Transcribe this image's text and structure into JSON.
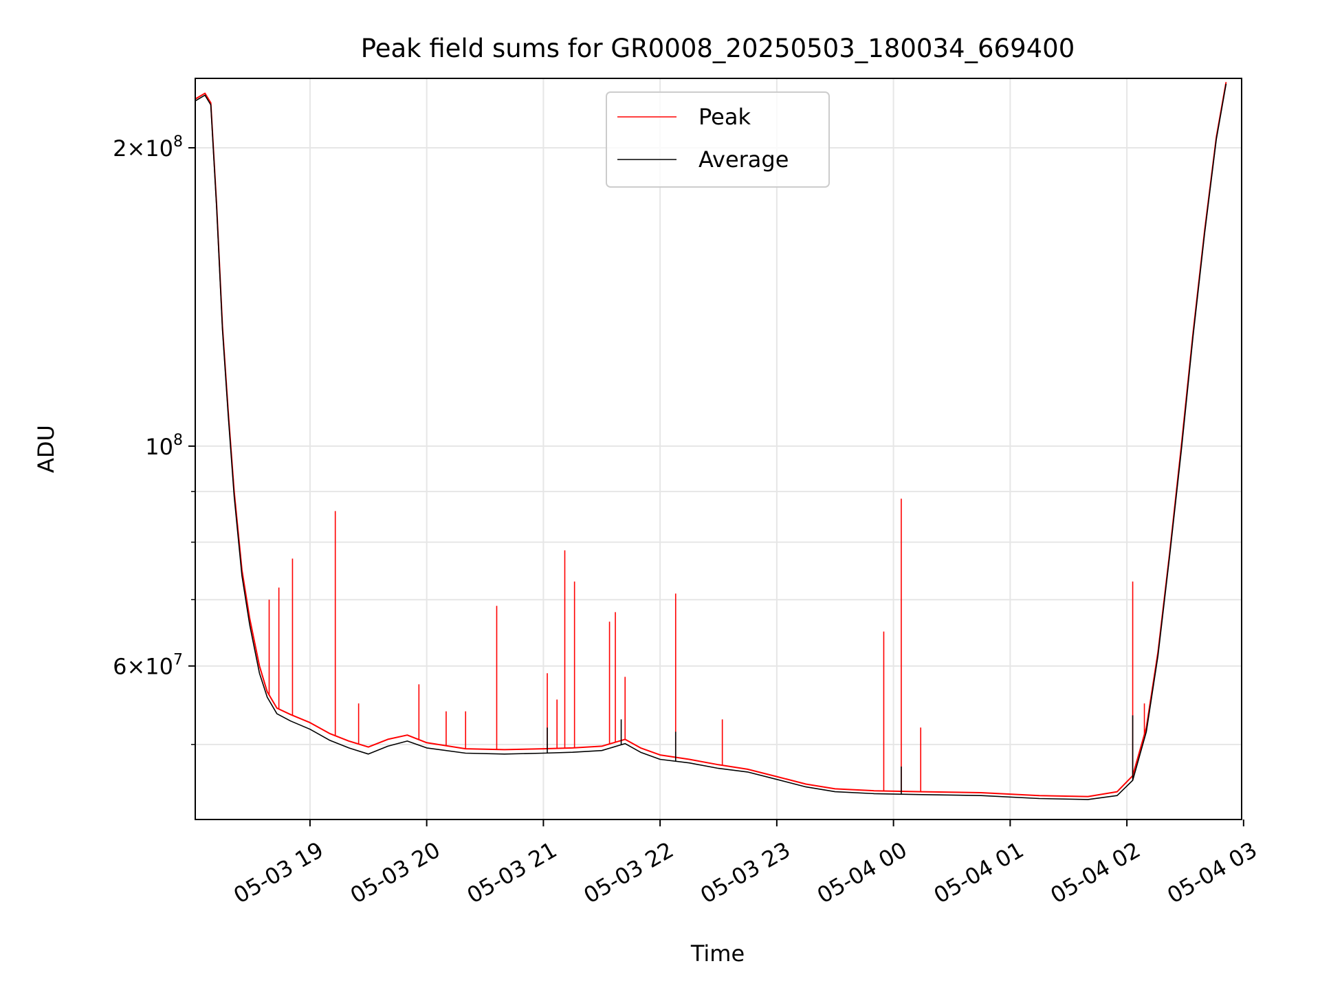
{
  "chart_data": {
    "type": "line",
    "title": "Peak field sums for GR0008_20250503_180034_669400",
    "xlabel": "Time",
    "ylabel": "ADU",
    "y_scale": "log",
    "ylim": [
      42000000,
      235000000
    ],
    "xlim": [
      "2025-05-03 18:01",
      "2025-05-04 02:59"
    ],
    "grid": true,
    "legend_position": "upper center",
    "x_ticks": [
      {
        "label": "05-03 19",
        "t": "2025-05-03 19:00"
      },
      {
        "label": "05-03 20",
        "t": "2025-05-03 20:00"
      },
      {
        "label": "05-03 21",
        "t": "2025-05-03 21:00"
      },
      {
        "label": "05-03 22",
        "t": "2025-05-03 22:00"
      },
      {
        "label": "05-03 23",
        "t": "2025-05-03 23:00"
      },
      {
        "label": "05-04 00",
        "t": "2025-05-04 00:00"
      },
      {
        "label": "05-04 01",
        "t": "2025-05-04 01:00"
      },
      {
        "label": "05-04 02",
        "t": "2025-05-04 02:00"
      },
      {
        "label": "05-04 03",
        "t": "2025-05-04 03:00"
      }
    ],
    "y_ticks": [
      {
        "value": 200000000,
        "mantissa": "2",
        "exponent": "8"
      },
      {
        "value": 100000000,
        "mantissa": "",
        "exponent": "8"
      },
      {
        "value": 60000000,
        "mantissa": "6",
        "exponent": "7"
      }
    ],
    "y_minor_ticks": [
      50000000,
      70000000,
      80000000,
      90000000
    ],
    "series": [
      {
        "name": "Peak",
        "color": "#ff0000",
        "points": [
          [
            "2025-05-03 18:01",
            224000000
          ],
          [
            "2025-05-03 18:06",
            227000000
          ],
          [
            "2025-05-03 18:09",
            222000000
          ],
          [
            "2025-05-03 18:12",
            175000000
          ],
          [
            "2025-05-03 18:15",
            132000000
          ],
          [
            "2025-05-03 18:18",
            108000000
          ],
          [
            "2025-05-03 18:21",
            90000000
          ],
          [
            "2025-05-03 18:25",
            75000000
          ],
          [
            "2025-05-03 18:29",
            67000000
          ],
          [
            "2025-05-03 18:34",
            60000000
          ],
          [
            "2025-05-03 18:38",
            56500000
          ],
          [
            "2025-05-03 18:43",
            54400000
          ],
          [
            "2025-05-03 18:50",
            53600000
          ],
          [
            "2025-05-03 19:00",
            52600000
          ],
          [
            "2025-05-03 19:10",
            51300000
          ],
          [
            "2025-05-03 19:20",
            50400000
          ],
          [
            "2025-05-03 19:30",
            49700000
          ],
          [
            "2025-05-03 19:40",
            50600000
          ],
          [
            "2025-05-03 19:50",
            51100000
          ],
          [
            "2025-05-03 20:00",
            50200000
          ],
          [
            "2025-05-03 20:20",
            49500000
          ],
          [
            "2025-05-03 20:40",
            49400000
          ],
          [
            "2025-05-03 21:00",
            49500000
          ],
          [
            "2025-05-03 21:15",
            49600000
          ],
          [
            "2025-05-03 21:30",
            49800000
          ],
          [
            "2025-05-03 21:42",
            50600000
          ],
          [
            "2025-05-03 21:50",
            49600000
          ],
          [
            "2025-05-03 22:00",
            48800000
          ],
          [
            "2025-05-03 22:15",
            48300000
          ],
          [
            "2025-05-03 22:30",
            47700000
          ],
          [
            "2025-05-03 22:45",
            47200000
          ],
          [
            "2025-05-03 23:00",
            46400000
          ],
          [
            "2025-05-03 23:15",
            45600000
          ],
          [
            "2025-05-03 23:30",
            45100000
          ],
          [
            "2025-05-03 23:50",
            44900000
          ],
          [
            "2025-05-04 00:15",
            44800000
          ],
          [
            "2025-05-04 00:45",
            44700000
          ],
          [
            "2025-05-04 01:15",
            44400000
          ],
          [
            "2025-05-04 01:40",
            44300000
          ],
          [
            "2025-05-04 01:55",
            44800000
          ],
          [
            "2025-05-04 02:03",
            46500000
          ],
          [
            "2025-05-04 02:10",
            52000000
          ],
          [
            "2025-05-04 02:16",
            62000000
          ],
          [
            "2025-05-04 02:22",
            78000000
          ],
          [
            "2025-05-04 02:28",
            100000000
          ],
          [
            "2025-05-04 02:34",
            130000000
          ],
          [
            "2025-05-04 02:40",
            165000000
          ],
          [
            "2025-05-04 02:46",
            205000000
          ],
          [
            "2025-05-04 02:51",
            233000000
          ]
        ]
      },
      {
        "name": "Average",
        "color": "#000000",
        "points": [
          [
            "2025-05-03 18:01",
            223000000
          ],
          [
            "2025-05-03 18:06",
            226000000
          ],
          [
            "2025-05-03 18:09",
            221000000
          ],
          [
            "2025-05-03 18:12",
            174000000
          ],
          [
            "2025-05-03 18:15",
            131000000
          ],
          [
            "2025-05-03 18:18",
            107000000
          ],
          [
            "2025-05-03 18:21",
            89000000
          ],
          [
            "2025-05-03 18:25",
            74000000
          ],
          [
            "2025-05-03 18:29",
            66000000
          ],
          [
            "2025-05-03 18:34",
            59000000
          ],
          [
            "2025-05-03 18:38",
            55800000
          ],
          [
            "2025-05-03 18:43",
            53700000
          ],
          [
            "2025-05-03 18:50",
            52800000
          ],
          [
            "2025-05-03 19:00",
            51800000
          ],
          [
            "2025-05-03 19:10",
            50500000
          ],
          [
            "2025-05-03 19:20",
            49600000
          ],
          [
            "2025-05-03 19:30",
            48900000
          ],
          [
            "2025-05-03 19:40",
            49800000
          ],
          [
            "2025-05-03 19:50",
            50400000
          ],
          [
            "2025-05-03 20:00",
            49600000
          ],
          [
            "2025-05-03 20:20",
            49000000
          ],
          [
            "2025-05-03 20:40",
            48900000
          ],
          [
            "2025-05-03 21:00",
            49000000
          ],
          [
            "2025-05-03 21:15",
            49100000
          ],
          [
            "2025-05-03 21:30",
            49300000
          ],
          [
            "2025-05-03 21:42",
            50100000
          ],
          [
            "2025-05-03 21:50",
            49100000
          ],
          [
            "2025-05-03 22:00",
            48300000
          ],
          [
            "2025-05-03 22:15",
            47900000
          ],
          [
            "2025-05-03 22:30",
            47300000
          ],
          [
            "2025-05-03 22:45",
            46900000
          ],
          [
            "2025-05-03 23:00",
            46100000
          ],
          [
            "2025-05-03 23:15",
            45300000
          ],
          [
            "2025-05-03 23:30",
            44800000
          ],
          [
            "2025-05-03 23:50",
            44600000
          ],
          [
            "2025-05-04 00:15",
            44500000
          ],
          [
            "2025-05-04 00:45",
            44400000
          ],
          [
            "2025-05-04 01:15",
            44100000
          ],
          [
            "2025-05-04 01:40",
            44000000
          ],
          [
            "2025-05-04 01:55",
            44400000
          ],
          [
            "2025-05-04 02:03",
            46000000
          ],
          [
            "2025-05-04 02:10",
            51500000
          ],
          [
            "2025-05-04 02:16",
            61500000
          ],
          [
            "2025-05-04 02:22",
            77500000
          ],
          [
            "2025-05-04 02:28",
            99000000
          ],
          [
            "2025-05-04 02:34",
            129000000
          ],
          [
            "2025-05-04 02:40",
            164000000
          ],
          [
            "2025-05-04 02:46",
            204000000
          ],
          [
            "2025-05-04 02:51",
            232000000
          ]
        ]
      }
    ],
    "peak_spikes": [
      [
        "2025-05-03 18:39",
        70000000
      ],
      [
        "2025-05-03 18:44",
        72000000
      ],
      [
        "2025-05-03 18:51",
        77000000
      ],
      [
        "2025-05-03 19:13",
        86000000
      ],
      [
        "2025-05-03 19:25",
        55000000
      ],
      [
        "2025-05-03 19:56",
        57500000
      ],
      [
        "2025-05-03 20:10",
        54000000
      ],
      [
        "2025-05-03 20:20",
        54000000
      ],
      [
        "2025-05-03 20:36",
        69000000
      ],
      [
        "2025-05-03 21:02",
        59000000
      ],
      [
        "2025-05-03 21:07",
        55500000
      ],
      [
        "2025-05-03 21:11",
        78500000
      ],
      [
        "2025-05-03 21:16",
        73000000
      ],
      [
        "2025-05-03 21:34",
        66500000
      ],
      [
        "2025-05-03 21:37",
        68000000
      ],
      [
        "2025-05-03 21:42",
        58500000
      ],
      [
        "2025-05-03 22:08",
        71000000
      ],
      [
        "2025-05-03 22:32",
        53000000
      ],
      [
        "2025-05-03 23:55",
        65000000
      ],
      [
        "2025-05-04 00:04",
        88500000
      ],
      [
        "2025-05-04 00:14",
        52000000
      ],
      [
        "2025-05-04 02:03",
        73000000
      ],
      [
        "2025-05-04 02:09",
        55000000
      ]
    ],
    "average_spikes": [
      [
        "2025-05-03 21:02",
        52000000
      ],
      [
        "2025-05-03 21:40",
        53000000
      ],
      [
        "2025-05-03 22:08",
        51500000
      ],
      [
        "2025-05-04 00:04",
        47500000
      ],
      [
        "2025-05-04 02:03",
        53500000
      ]
    ]
  }
}
